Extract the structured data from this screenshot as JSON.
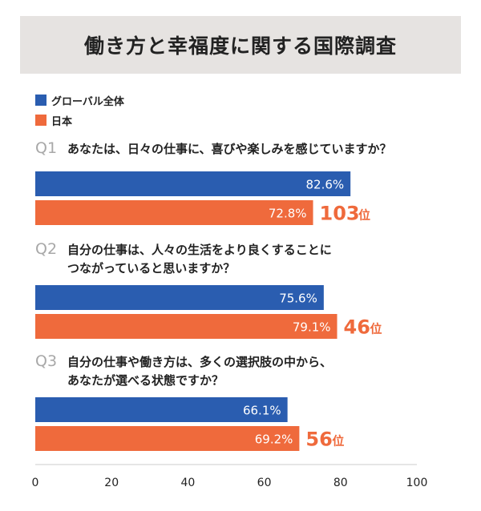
{
  "title": "働き方と幸福度に関する国際調査",
  "colors": {
    "global": "#2a5db0",
    "japan": "#ef6a3c",
    "title_bg": "#e6e3e1"
  },
  "legend": [
    {
      "label": "グローバル全体",
      "color": "#2a5db0"
    },
    {
      "label": "日本",
      "color": "#ef6a3c"
    }
  ],
  "chart_data": {
    "type": "bar",
    "orientation": "horizontal",
    "xlim": [
      0,
      100
    ],
    "xticks": [
      "0",
      "20",
      "40",
      "60",
      "80",
      "100"
    ],
    "questions": [
      {
        "id": "Q1",
        "text": [
          "あなたは、日々の仕事に、喜びや楽しみを感じていますか？"
        ],
        "series": [
          {
            "name": "グローバル全体",
            "value": 82.6,
            "label": "82.6%"
          },
          {
            "name": "日本",
            "value": 72.8,
            "label": "72.8%",
            "rank": "103",
            "rank_suffix": "位"
          }
        ]
      },
      {
        "id": "Q2",
        "text": [
          "自分の仕事は、人々の生活をより良くすることに",
          "つながっていると思いますか？"
        ],
        "series": [
          {
            "name": "グローバル全体",
            "value": 75.6,
            "label": "75.6%"
          },
          {
            "name": "日本",
            "value": 79.1,
            "label": "79.1%",
            "rank": "46",
            "rank_suffix": "位"
          }
        ]
      },
      {
        "id": "Q3",
        "text": [
          "自分の仕事や働き方は、多くの選択肢の中から、",
          "あなたが選べる状態ですか？"
        ],
        "series": [
          {
            "name": "グローバル全体",
            "value": 66.1,
            "label": "66.1%"
          },
          {
            "name": "日本",
            "value": 69.2,
            "label": "69.2%",
            "rank": "56",
            "rank_suffix": "位"
          }
        ]
      }
    ]
  }
}
